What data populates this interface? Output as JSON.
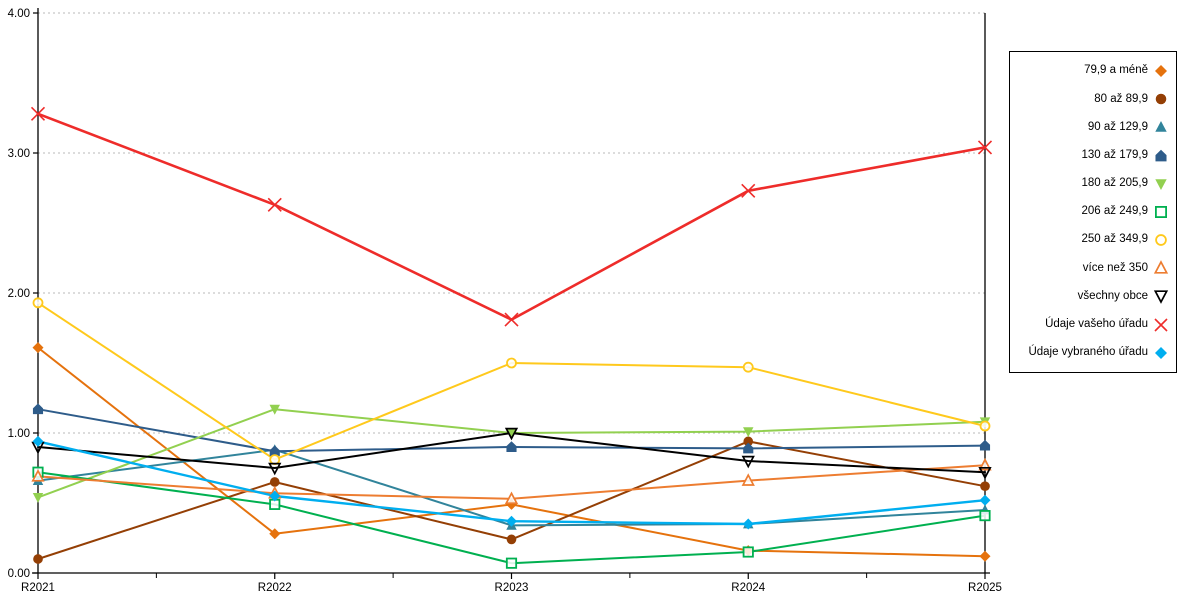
{
  "chart_data": {
    "type": "line",
    "title": "",
    "xlabel": "",
    "ylabel": "",
    "categories": [
      "R2021",
      "R2022",
      "R2023",
      "R2024",
      "R2025"
    ],
    "ylim": [
      0,
      4
    ],
    "ytick_labels": [
      "0.00",
      "1.00",
      "2.00",
      "3.00",
      "4.00"
    ],
    "grid": "horizontal dashed gray lines at 1.00, 2.00, 3.00, 4.00",
    "legend_position": "right outside plot, boxed",
    "axis_color": "#000000",
    "gridline_color": "#b8b8b8",
    "series": [
      {
        "name": "79,9 a méně",
        "marker": "diamond",
        "filled": true,
        "color": "#E5720D",
        "values": [
          1.61,
          0.28,
          0.49,
          0.16,
          0.12
        ]
      },
      {
        "name": "80 až 89,9",
        "marker": "circle",
        "filled": true,
        "color": "#943F05",
        "values": [
          0.1,
          0.65,
          0.24,
          0.94,
          0.62
        ]
      },
      {
        "name": "90 až 129,9",
        "marker": "triangle-up",
        "filled": true,
        "color": "#31849B",
        "values": [
          0.66,
          0.88,
          0.34,
          0.35,
          0.45
        ]
      },
      {
        "name": "130 až 179,9",
        "marker": "pentagon",
        "filled": true,
        "color": "#2E5C8A",
        "values": [
          1.17,
          0.87,
          0.9,
          0.89,
          0.91
        ]
      },
      {
        "name": "180 až 205,9",
        "marker": "triangle-down",
        "filled": true,
        "color": "#92D050",
        "values": [
          0.54,
          1.17,
          1.0,
          1.01,
          1.08
        ]
      },
      {
        "name": "206 až 249,9",
        "marker": "square-open",
        "filled": false,
        "color": "#00B050",
        "values": [
          0.72,
          0.49,
          0.07,
          0.15,
          0.41
        ]
      },
      {
        "name": "250 až 349,9",
        "marker": "circle-open",
        "filled": false,
        "color": "#FFC91C",
        "values": [
          1.93,
          0.81,
          1.5,
          1.47,
          1.05
        ]
      },
      {
        "name": "více než 350",
        "marker": "triangle-up-open",
        "filled": false,
        "color": "#ED7D31",
        "values": [
          0.69,
          0.57,
          0.53,
          0.66,
          0.77
        ]
      },
      {
        "name": "všechny obce",
        "marker": "triangle-down-open",
        "filled": false,
        "color": "#000000",
        "values": [
          0.9,
          0.75,
          1.0,
          0.8,
          0.72
        ]
      },
      {
        "name": "Údaje vašeho úřadu",
        "marker": "x",
        "filled": false,
        "color": "#EE2C2A",
        "values": [
          3.28,
          2.63,
          1.81,
          2.73,
          3.04
        ]
      },
      {
        "name": "Údaje vybraného úřadu",
        "marker": "diamond",
        "filled": true,
        "color": "#00AEEF",
        "values": [
          0.94,
          0.55,
          0.37,
          0.35,
          0.52
        ]
      }
    ]
  }
}
